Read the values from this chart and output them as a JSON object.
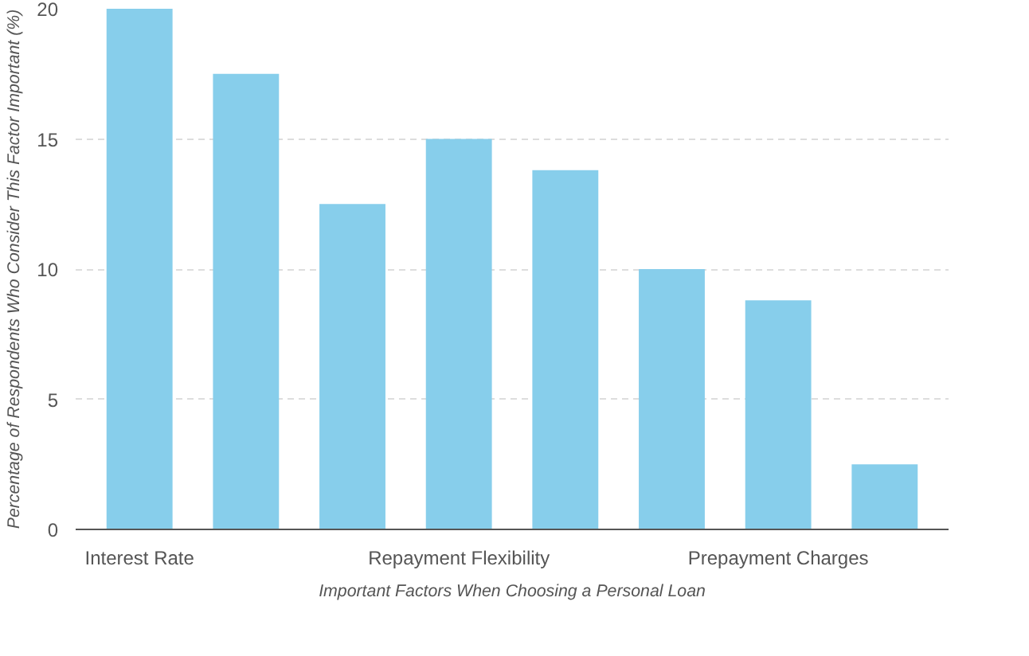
{
  "chart_data": {
    "type": "bar",
    "xlabel": "Important Factors When Choosing a Personal Loan",
    "ylabel": "Percentage of Respondents Who Consider This Factor Important (%)",
    "categories": [
      "Interest Rate",
      null,
      null,
      "Repayment Flexibility",
      null,
      null,
      "Prepayment Charges",
      null
    ],
    "values": [
      20,
      17.5,
      12.5,
      15,
      13.8,
      10,
      8.8,
      2.5
    ],
    "color": "#87ceeb",
    "ylim": [
      0,
      20
    ],
    "yticks": [
      0,
      5,
      10,
      15,
      20
    ],
    "grid": "y"
  }
}
